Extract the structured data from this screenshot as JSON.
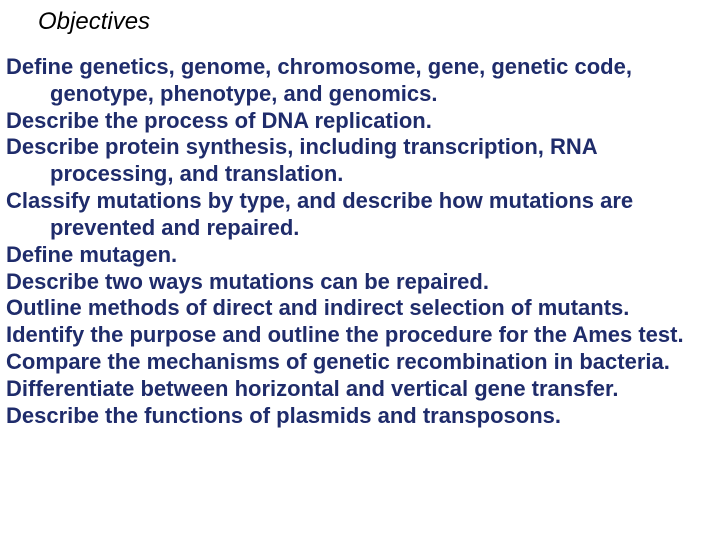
{
  "title": "Objectives",
  "title_color": "#000000",
  "title_fontsize": 24,
  "title_italic": true,
  "body_color": "#1f2c6b",
  "body_fontsize": 22,
  "body_fontweight": "bold",
  "background_color": "#ffffff",
  "objectives": [
    "Define genetics, genome, chromosome, gene, genetic code, genotype, phenotype, and genomics.",
    "Describe the process of DNA replication.",
    "Describe protein synthesis, including transcription, RNA processing, and translation.",
    "Classify mutations by type, and describe how mutations are prevented and repaired.",
    "Define mutagen.",
    "Describe two ways mutations can be repaired.",
    "Outline methods of direct and indirect selection of mutants.",
    "Identify the purpose and outline the procedure for the Ames test.",
    "Compare the mechanisms of genetic recombination in bacteria.",
    "Differentiate between horizontal and vertical gene transfer.",
    "Describe the functions of plasmids and transposons."
  ]
}
